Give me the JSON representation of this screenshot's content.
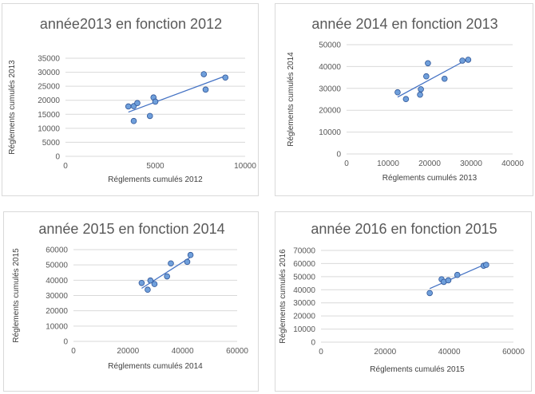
{
  "chart_data": [
    {
      "type": "scatter",
      "title": "année2013 en fonction 2012",
      "xlabel": "Réglements cumulés 2012",
      "ylabel": "Réglements cumulés 2013",
      "xlim": [
        0,
        10000
      ],
      "ylim": [
        0,
        35000
      ],
      "x_ticks": [
        "0",
        "5000",
        "10000"
      ],
      "y_ticks": [
        "0",
        "5000",
        "10000",
        "15000",
        "20000",
        "25000",
        "30000",
        "35000"
      ],
      "grid": "horizontal",
      "trendline": "linear",
      "marker_color": "#6f9fdb",
      "line_color": "#4472c4",
      "x": [
        3500,
        3800,
        4000,
        3800,
        4700,
        4900,
        5000,
        7700,
        7800,
        8900
      ],
      "y": [
        17800,
        17900,
        19000,
        12600,
        14400,
        21000,
        19500,
        29300,
        23800,
        28100
      ]
    },
    {
      "type": "scatter",
      "title": "année 2014 en fonction 2013",
      "xlabel": "Réglements cumulés 2013",
      "ylabel": "Réglements cumulés 2014",
      "xlim": [
        0,
        40000
      ],
      "ylim": [
        0,
        50000
      ],
      "x_ticks": [
        "0",
        "10000",
        "20000",
        "30000",
        "40000"
      ],
      "y_ticks": [
        "0",
        "10000",
        "20000",
        "30000",
        "40000",
        "50000"
      ],
      "grid": "horizontal",
      "trendline": "linear",
      "marker_color": "#6f9fdb",
      "line_color": "#4472c4",
      "x": [
        12300,
        14300,
        17700,
        17900,
        19200,
        19600,
        23600,
        27900,
        29300
      ],
      "y": [
        28200,
        25100,
        27100,
        29600,
        35500,
        41500,
        34400,
        42700,
        43100
      ]
    },
    {
      "type": "scatter",
      "title": "année 2015 en fonction 2014",
      "xlabel": "Réglements cumulés 2014",
      "ylabel": "Réglements cumulés 2015",
      "xlim": [
        0,
        60000
      ],
      "ylim": [
        0,
        60000
      ],
      "x_ticks": [
        "0",
        "20000",
        "40000",
        "60000"
      ],
      "y_ticks": [
        "0",
        "10000",
        "20000",
        "30000",
        "40000",
        "50000",
        "60000"
      ],
      "grid": "horizontal",
      "trendline": "linear",
      "marker_color": "#6f9fdb",
      "line_color": "#4472c4",
      "x": [
        25000,
        27200,
        28200,
        29700,
        34300,
        35700,
        41700,
        42900
      ],
      "y": [
        38200,
        33800,
        39800,
        37500,
        42500,
        51000,
        52000,
        56500
      ]
    },
    {
      "type": "scatter",
      "title": "année 2016 en fonction 2015",
      "xlabel": "Réglements cumulés 2015",
      "ylabel": "Réglements cumulés 2016",
      "xlim": [
        0,
        60000
      ],
      "ylim": [
        0,
        70000
      ],
      "x_ticks": [
        "0",
        "20000",
        "40000",
        "60000"
      ],
      "y_ticks": [
        "0",
        "10000",
        "20000",
        "30000",
        "40000",
        "50000",
        "60000",
        "70000"
      ],
      "grid": "horizontal",
      "trendline": "linear",
      "marker_color": "#6f9fdb",
      "line_color": "#4472c4",
      "x": [
        33900,
        37600,
        38300,
        39700,
        42500,
        50700,
        51500
      ],
      "y": [
        37500,
        48000,
        46000,
        47200,
        51300,
        58300,
        59000
      ]
    }
  ]
}
